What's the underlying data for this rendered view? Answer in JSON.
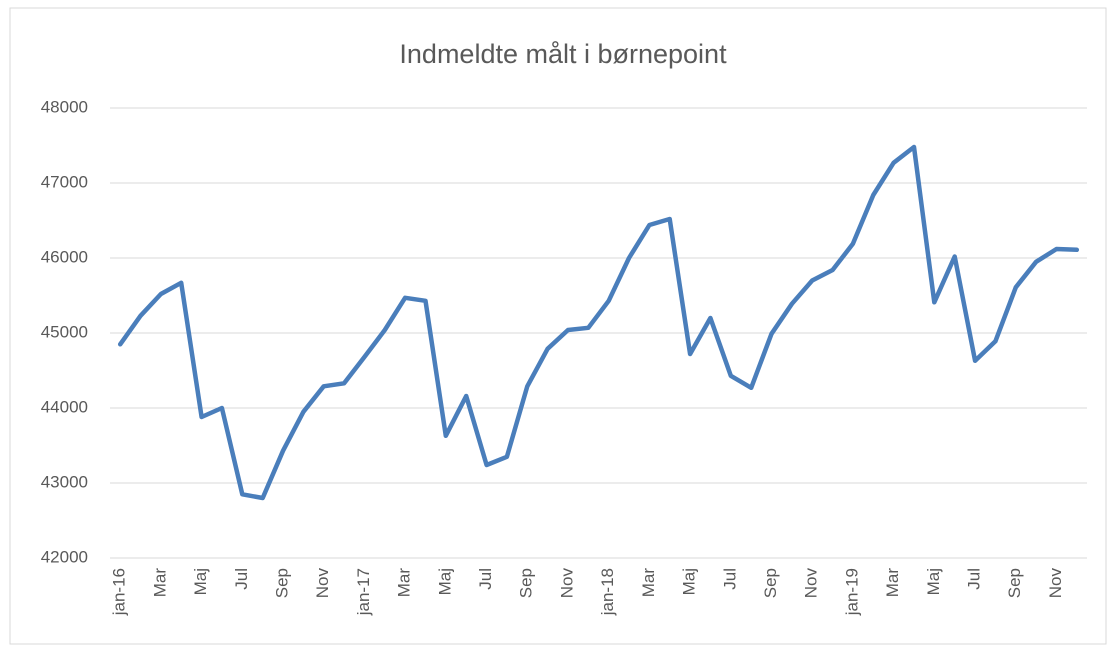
{
  "chart_data": {
    "type": "line",
    "title": "Indmeldte målt i børnepoint",
    "categories": [
      "jan-16",
      null,
      "Mar",
      null,
      "Maj",
      null,
      "Jul",
      null,
      "Sep",
      null,
      "Nov",
      null,
      "jan-17",
      null,
      "Mar",
      null,
      "Maj",
      null,
      "Jul",
      null,
      "Sep",
      null,
      "Nov",
      null,
      "jan-18",
      null,
      "Mar",
      null,
      "Maj",
      null,
      "Jul",
      null,
      "Sep",
      null,
      "Nov",
      null,
      "jan-19",
      null,
      "Mar",
      null,
      "Maj",
      null,
      "Jul",
      null,
      "Sep",
      null,
      "Nov",
      null
    ],
    "series": [
      {
        "color": "#4a7ebb",
        "values": [
          44850,
          45230,
          45520,
          45670,
          43880,
          44000,
          42850,
          42800,
          43430,
          43950,
          44290,
          44330,
          44680,
          45040,
          45470,
          45430,
          43630,
          44160,
          43240,
          43350,
          44290,
          44790,
          45040,
          45070,
          45430,
          46000,
          46440,
          46520,
          44720,
          45200,
          44430,
          44270,
          44990,
          45390,
          45700,
          45840,
          46190,
          46840,
          47270,
          47480,
          45410,
          46020,
          44630,
          44890,
          45610,
          45950,
          46120,
          46110
        ]
      }
    ],
    "ylim": [
      42000,
      48000
    ],
    "yticks": [
      42000,
      43000,
      44000,
      45000,
      46000,
      47000,
      48000
    ],
    "grid": true
  }
}
